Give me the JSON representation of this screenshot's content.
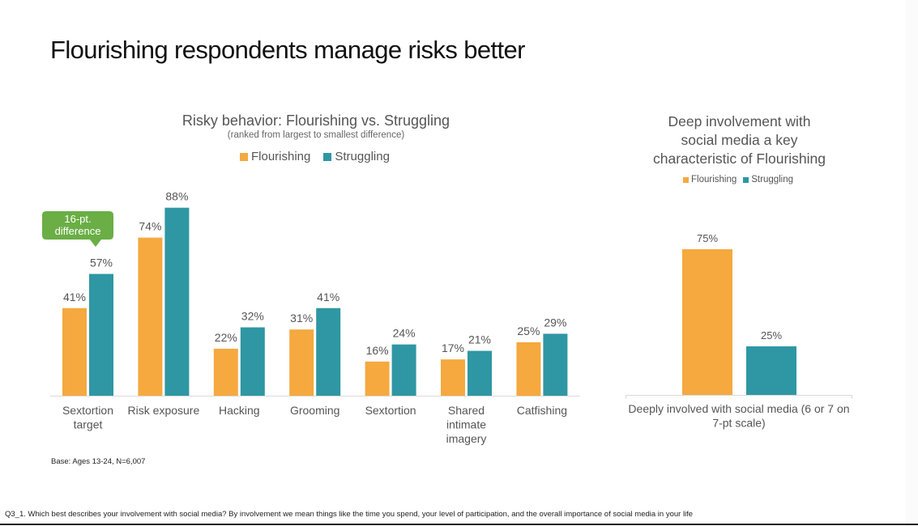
{
  "page": {
    "title": "Flourishing respondents manage risks better",
    "base_note": "Base: Ages 13-24, N=6,007",
    "footnote": "Q3_1. Which best describes your involvement with social media? By involvement we mean things like the time you spend, your level of participation, and the overall importance of social media in your life"
  },
  "colors": {
    "flourishing": "#F5A93F",
    "struggling": "#2E97A3",
    "callout": "#6AAE45",
    "axis": "#D9D9D9",
    "label": "#555555"
  },
  "chart_data": [
    {
      "type": "bar",
      "title": "Risky behavior: Flourishing vs. Struggling",
      "subtitle": "(ranked from largest to smallest difference)",
      "legend": [
        "Flourishing",
        "Struggling"
      ],
      "legend_position": "top-center",
      "categories": [
        "Sextortion target",
        "Risk exposure",
        "Hacking",
        "Grooming",
        "Sextortion",
        "Shared intimate imagery",
        "Catfishing"
      ],
      "category_lines": [
        [
          "Sextortion",
          "target"
        ],
        [
          "Risk exposure"
        ],
        [
          "Hacking"
        ],
        [
          "Grooming"
        ],
        [
          "Sextortion"
        ],
        [
          "Shared",
          "intimate",
          "imagery"
        ],
        [
          "Catfishing"
        ]
      ],
      "series": [
        {
          "name": "Flourishing",
          "values": [
            41,
            74,
            22,
            31,
            16,
            17,
            25
          ]
        },
        {
          "name": "Struggling",
          "values": [
            57,
            88,
            32,
            41,
            24,
            21,
            29
          ]
        }
      ],
      "value_suffix": "%",
      "ylim": [
        0,
        100
      ],
      "grid": false,
      "annotation": {
        "category_index": 0,
        "lines": [
          "16-pt.",
          "difference"
        ]
      }
    },
    {
      "type": "bar",
      "title": "Deep involvement with social media a key characteristic of Flourishing",
      "title_lines": [
        "Deep involvement with",
        "social media a key",
        "characteristic of Flourishing"
      ],
      "legend": [
        "Flourishing",
        "Struggling"
      ],
      "legend_position": "top-center",
      "categories": [
        "Deeply involved with social media (6 or 7 on 7-pt scale)"
      ],
      "category_lines": [
        [
          "Deeply involved with social media (6 or 7 on",
          "7-pt scale)"
        ]
      ],
      "series": [
        {
          "name": "Flourishing",
          "values": [
            75
          ]
        },
        {
          "name": "Struggling",
          "values": [
            25
          ]
        }
      ],
      "value_suffix": "%",
      "ylim": [
        0,
        100
      ],
      "grid": false
    }
  ]
}
